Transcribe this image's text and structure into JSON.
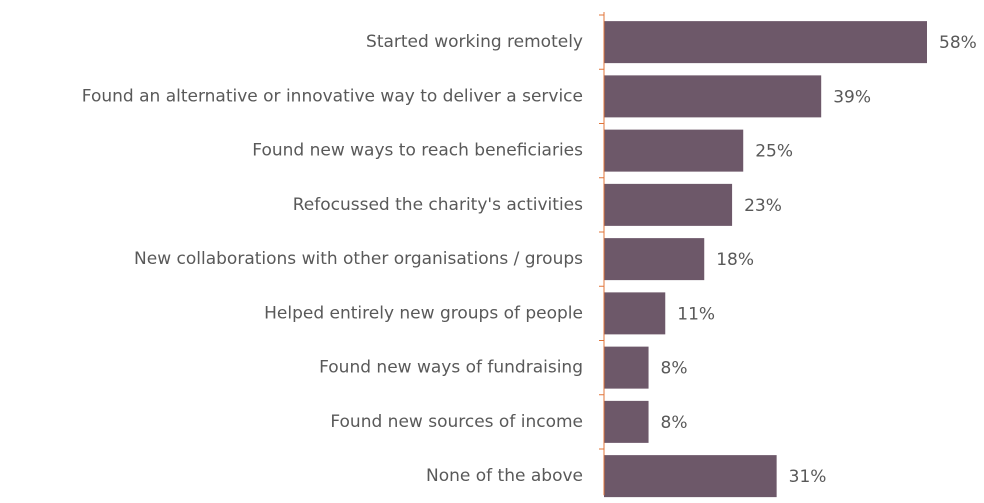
{
  "chart_data": {
    "type": "barh",
    "categories": [
      "Started working remotely",
      "Found an alternative or innovative way to deliver a service",
      "Found new ways to reach beneficiaries",
      "Refocussed the charity's activities",
      "New collaborations with other organisations / groups",
      "Helped entirely new groups of people",
      "Found new ways of fundraising",
      "Found new sources of income",
      "None of the above"
    ],
    "values": [
      58,
      39,
      25,
      23,
      18,
      11,
      8,
      8,
      31
    ],
    "value_labels": [
      "58%",
      "39%",
      "25%",
      "23%",
      "18%",
      "11%",
      "8%",
      "8%",
      "31%"
    ],
    "color": "#6d5869",
    "axis_color": "#e0743a"
  }
}
